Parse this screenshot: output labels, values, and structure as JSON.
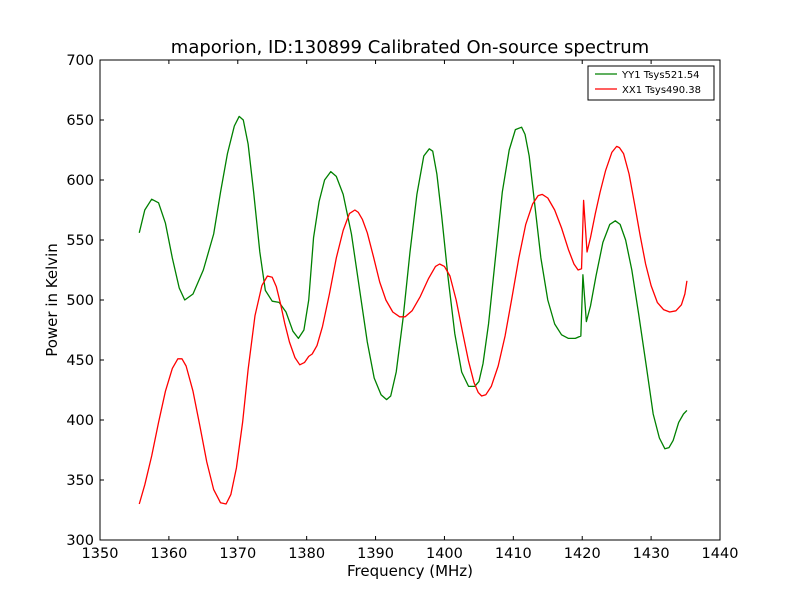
{
  "chart_data": {
    "type": "line",
    "title": "maporion, ID:130899 Calibrated On-source spectrum",
    "xlabel": "Frequency (MHz)",
    "ylabel": "Power in Kelvin",
    "xlim": [
      1350,
      1440
    ],
    "ylim": [
      300,
      700
    ],
    "xticks": [
      1350,
      1360,
      1370,
      1380,
      1390,
      1400,
      1410,
      1420,
      1430,
      1440
    ],
    "yticks": [
      300,
      350,
      400,
      450,
      500,
      550,
      600,
      650,
      700
    ],
    "grid": false,
    "legend_position": "top-right",
    "series": [
      {
        "name": "YY1 Tsys521.54",
        "color": "#008000",
        "x": [
          1355.7,
          1356.5,
          1357.5,
          1358.5,
          1359.5,
          1360.5,
          1361.5,
          1362.3,
          1363.5,
          1365,
          1366.5,
          1367.5,
          1368.5,
          1369.5,
          1370.2,
          1370.8,
          1371.5,
          1372.3,
          1373.2,
          1374,
          1375,
          1376,
          1377,
          1378,
          1378.8,
          1379.6,
          1380.3,
          1381,
          1381.8,
          1382.6,
          1383.5,
          1384.3,
          1385.3,
          1386.5,
          1387.7,
          1388.8,
          1389.8,
          1390.8,
          1391.6,
          1392.2,
          1393,
          1394,
          1395,
          1396,
          1397,
          1397.8,
          1398.3,
          1398.9,
          1399.6,
          1400.5,
          1401.5,
          1402.5,
          1403.5,
          1404.4,
          1405,
          1405.6,
          1406.4,
          1407.4,
          1408.4,
          1409.4,
          1410.3,
          1411.2,
          1411.7,
          1412.3,
          1413,
          1414,
          1415,
          1416,
          1417,
          1418,
          1419,
          1419.8,
          1420.1,
          1420.6,
          1421.2,
          1422,
          1423,
          1424,
          1424.8,
          1425.5,
          1426.3,
          1427.2,
          1428.2,
          1429.3,
          1430.3,
          1431.2,
          1432,
          1432.6,
          1433.2,
          1434,
          1434.7,
          1435.2
        ],
        "values": [
          556,
          575,
          584,
          581,
          564,
          535,
          510,
          500,
          505,
          525,
          555,
          590,
          622,
          645,
          653,
          650,
          630,
          590,
          540,
          508,
          499,
          498,
          490,
          474,
          468,
          475,
          500,
          552,
          582,
          600,
          607,
          603,
          588,
          555,
          508,
          465,
          435,
          421,
          417,
          420,
          440,
          485,
          540,
          588,
          620,
          626,
          624,
          605,
          570,
          520,
          472,
          440,
          428,
          428,
          432,
          447,
          480,
          535,
          590,
          625,
          642,
          644,
          638,
          620,
          585,
          535,
          500,
          480,
          471,
          468,
          468,
          470,
          521,
          482,
          495,
          520,
          548,
          563,
          566,
          563,
          550,
          525,
          488,
          445,
          405,
          385,
          376,
          377,
          383,
          398,
          405,
          408
        ]
      },
      {
        "name": "XX1 Tsys490.38",
        "color": "#ff0000",
        "x": [
          1355.7,
          1356.5,
          1357.5,
          1358.5,
          1359.5,
          1360.5,
          1361.3,
          1361.9,
          1362.5,
          1363.5,
          1364.5,
          1365.5,
          1366.5,
          1367.5,
          1368.3,
          1369,
          1369.8,
          1370.7,
          1371.5,
          1372.5,
          1373.5,
          1374.3,
          1375,
          1375.6,
          1376.2,
          1376.8,
          1377.5,
          1378.3,
          1379,
          1379.7,
          1380.3,
          1380.8,
          1381.5,
          1382.3,
          1383.3,
          1384.3,
          1385.3,
          1386.2,
          1387,
          1387.5,
          1388.1,
          1388.8,
          1389.7,
          1390.6,
          1391.5,
          1392.5,
          1393.5,
          1394.3,
          1395.3,
          1396.5,
          1397.7,
          1398.7,
          1399.3,
          1400,
          1400.8,
          1401.7,
          1402.6,
          1403.5,
          1404.3,
          1404.9,
          1405.4,
          1406,
          1406.8,
          1407.8,
          1408.8,
          1409.8,
          1410.8,
          1411.8,
          1412.8,
          1413.6,
          1414.2,
          1415,
          1416,
          1417,
          1418,
          1418.8,
          1419.4,
          1419.9,
          1420.2,
          1420.7,
          1421.2,
          1421.9,
          1422.6,
          1423.4,
          1424.3,
          1425,
          1425.4,
          1426,
          1426.8,
          1427.6,
          1428.4,
          1429.2,
          1430,
          1430.9,
          1431.8,
          1432.7,
          1433.6,
          1434.4,
          1434.9,
          1435.2
        ],
        "values": [
          330,
          346,
          370,
          398,
          424,
          443,
          451,
          451,
          445,
          424,
          395,
          365,
          342,
          331,
          330,
          338,
          360,
          398,
          442,
          487,
          512,
          520,
          519,
          511,
          497,
          481,
          465,
          452,
          446,
          448,
          453,
          455,
          462,
          478,
          505,
          535,
          558,
          572,
          575,
          573,
          567,
          556,
          536,
          515,
          500,
          490,
          486,
          486,
          491,
          503,
          518,
          528,
          530,
          528,
          520,
          500,
          474,
          449,
          431,
          423,
          420,
          421,
          428,
          445,
          470,
          502,
          535,
          563,
          580,
          587,
          588,
          585,
          575,
          560,
          542,
          530,
          525,
          526,
          583,
          540,
          552,
          572,
          590,
          608,
          623,
          628,
          627,
          622,
          605,
          580,
          554,
          530,
          512,
          498,
          492,
          490,
          491,
          496,
          505,
          516
        ]
      }
    ]
  }
}
